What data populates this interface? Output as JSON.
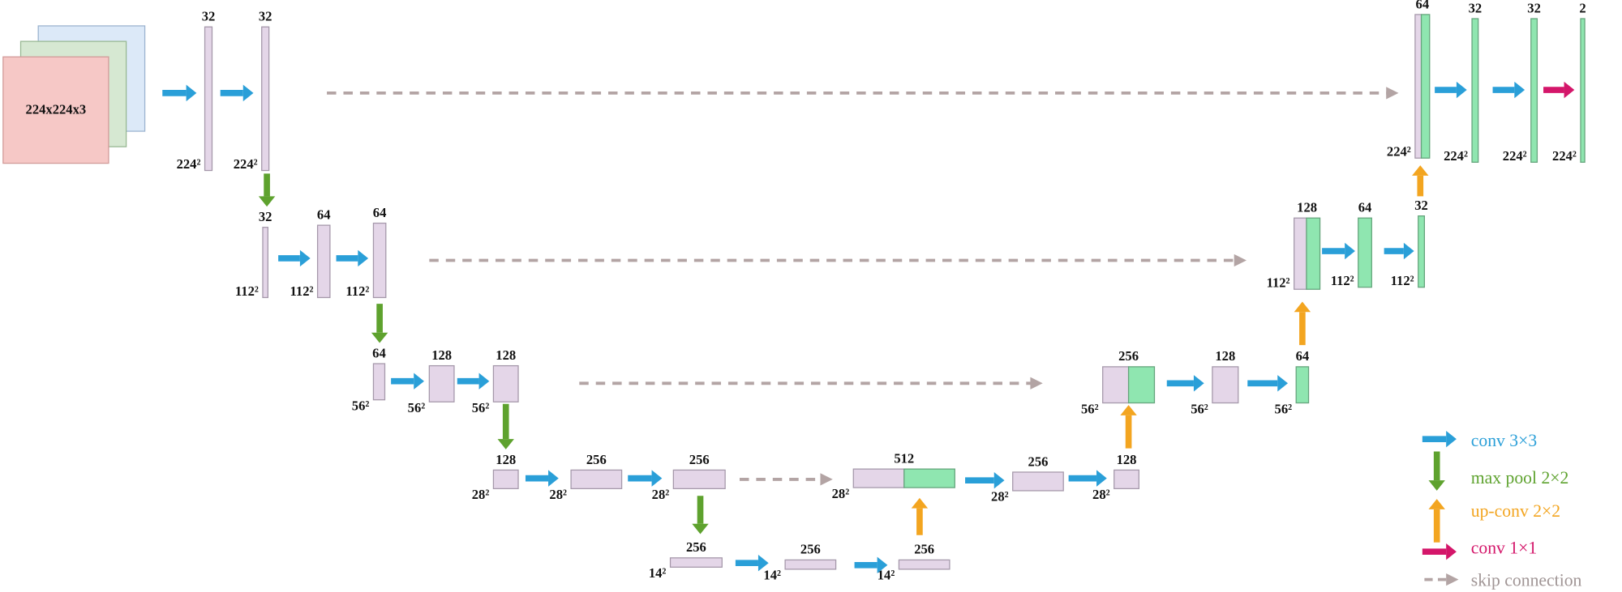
{
  "input": {
    "label": "224x224x3"
  },
  "blocks": [
    {
      "channels": "32",
      "size": "224²"
    },
    {
      "channels": "32",
      "size": "224²"
    },
    {
      "channels": "32",
      "size": "112²"
    },
    {
      "channels": "64",
      "size": "112²"
    },
    {
      "channels": "64",
      "size": "112²"
    },
    {
      "channels": "64",
      "size": "56²"
    },
    {
      "channels": "128",
      "size": "56²"
    },
    {
      "channels": "128",
      "size": "56²"
    },
    {
      "channels": "128",
      "size": "28²"
    },
    {
      "channels": "256",
      "size": "28²"
    },
    {
      "channels": "256",
      "size": "28²"
    },
    {
      "channels": "256",
      "size": "14²"
    },
    {
      "channels": "256",
      "size": "14²"
    },
    {
      "channels": "256",
      "size": "14²"
    },
    {
      "channels": "512",
      "size": "28²"
    },
    {
      "channels": "256",
      "size": "28²"
    },
    {
      "channels": "128",
      "size": "28²"
    },
    {
      "channels": "256",
      "size": "56²"
    },
    {
      "channels": "128",
      "size": "56²"
    },
    {
      "channels": "64",
      "size": "56²"
    },
    {
      "channels": "128",
      "size": "112²"
    },
    {
      "channels": "64",
      "size": "112²"
    },
    {
      "channels": "32",
      "size": "112²"
    },
    {
      "channels": "64",
      "size": "224²"
    },
    {
      "channels": "32",
      "size": "224²"
    },
    {
      "channels": "32",
      "size": "224²"
    },
    {
      "channels": "2",
      "size": "224²"
    }
  ],
  "legend": [
    {
      "label": "conv 3×3"
    },
    {
      "label": "max pool 2×2"
    },
    {
      "label": "up-conv 2×2"
    },
    {
      "label": "conv 1×1"
    },
    {
      "label": "skip connection"
    }
  ]
}
